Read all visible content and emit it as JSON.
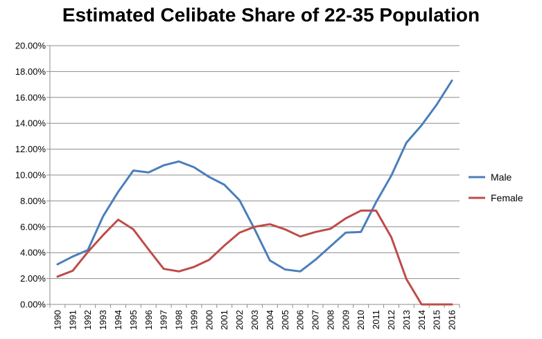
{
  "chart_data": {
    "type": "line",
    "title": "Estimated Celibate Share of 22-35 Population",
    "xlabel": "",
    "ylabel": "",
    "ylim": [
      0,
      20
    ],
    "y_tick_labels": [
      "0.00%",
      "2.00%",
      "4.00%",
      "6.00%",
      "8.00%",
      "10.00%",
      "12.00%",
      "14.00%",
      "16.00%",
      "18.00%",
      "20.00%"
    ],
    "grid": true,
    "legend_position": "right",
    "categories": [
      "1990",
      "1991",
      "1992",
      "1993",
      "1994",
      "1995",
      "1996",
      "1997",
      "1998",
      "1999",
      "2000",
      "2001",
      "2002",
      "2003",
      "2004",
      "2005",
      "2006",
      "2007",
      "2008",
      "2009",
      "2010",
      "2011",
      "2012",
      "2013",
      "2014",
      "2015",
      "2016"
    ],
    "series": [
      {
        "name": "Male",
        "color": "#4a7ebb",
        "values": [
          3.1,
          3.7,
          4.2,
          6.8,
          8.7,
          10.35,
          10.2,
          10.75,
          11.05,
          10.6,
          9.85,
          9.25,
          8.05,
          5.8,
          3.4,
          2.7,
          2.55,
          3.45,
          4.5,
          5.55,
          5.6,
          7.9,
          9.95,
          12.5,
          13.85,
          15.45,
          17.3
        ]
      },
      {
        "name": "Female",
        "color": "#be4b48",
        "values": [
          2.15,
          2.6,
          4.05,
          5.35,
          6.55,
          5.8,
          4.25,
          2.75,
          2.55,
          2.9,
          3.45,
          4.55,
          5.55,
          6.0,
          6.2,
          5.8,
          5.25,
          5.6,
          5.85,
          6.65,
          7.25,
          7.25,
          5.2,
          1.95,
          0.0,
          0.0,
          0.0
        ]
      }
    ]
  }
}
